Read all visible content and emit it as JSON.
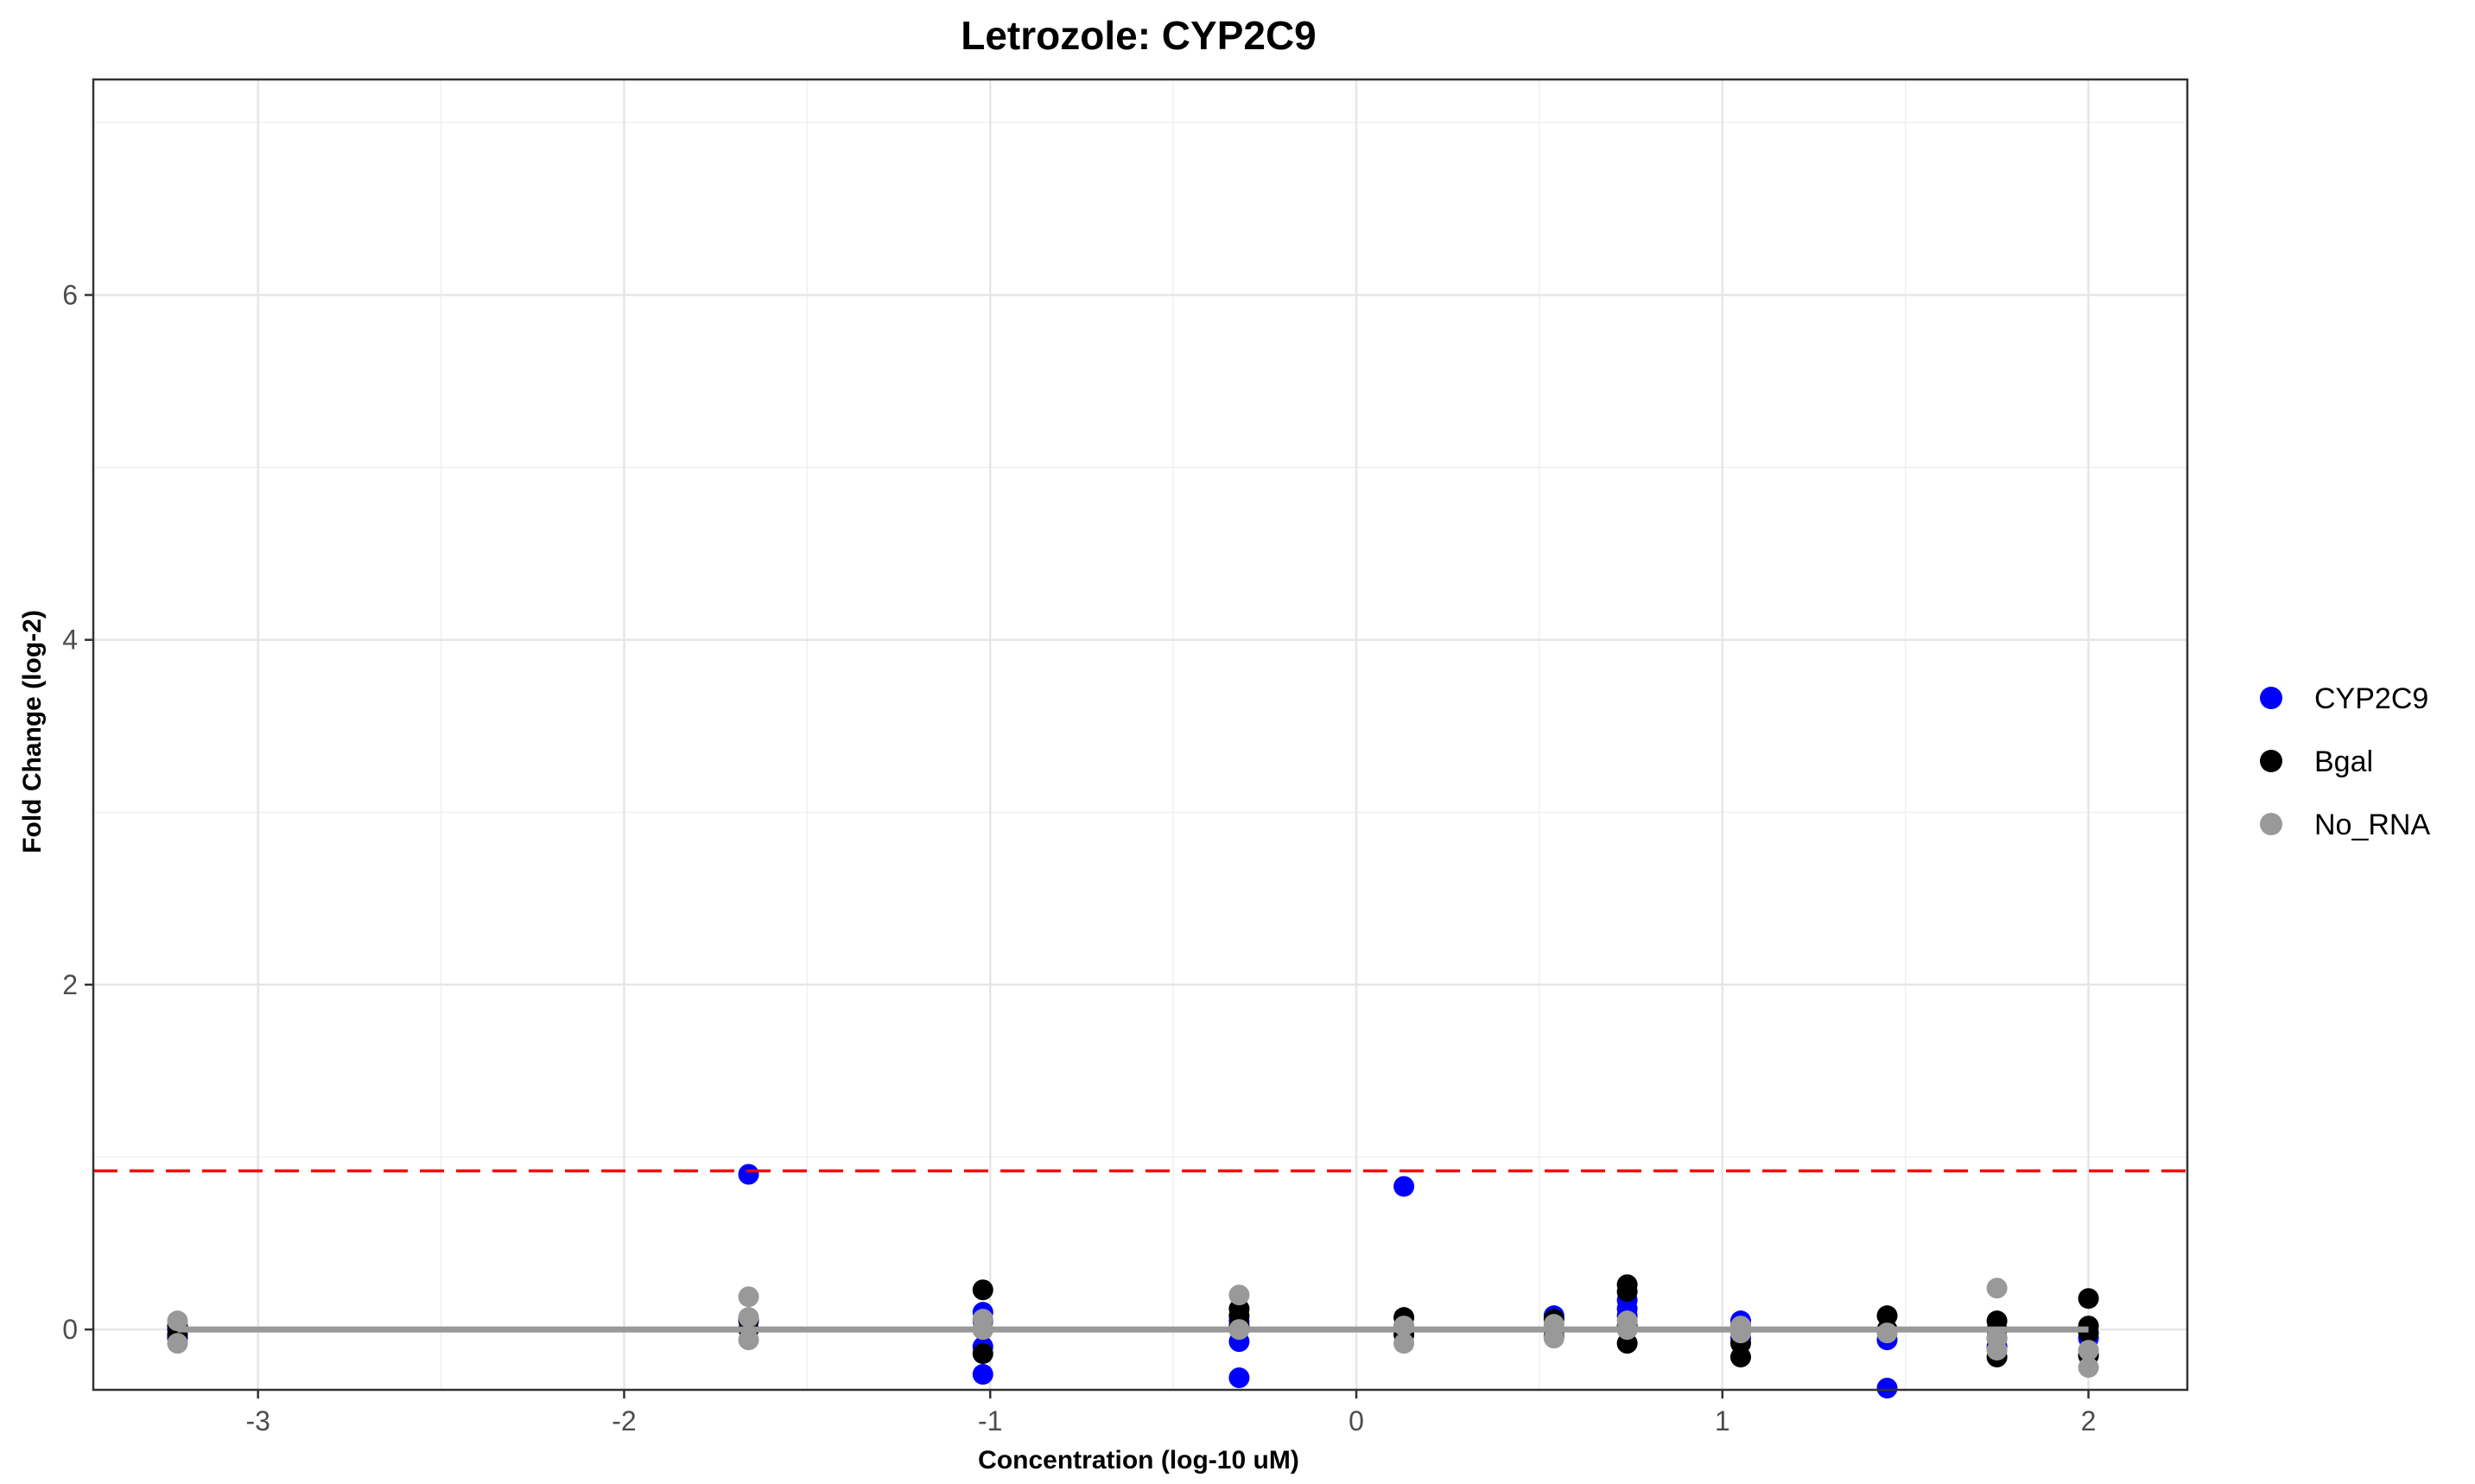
{
  "chart_data": {
    "type": "scatter",
    "title": "Letrozole: CYP2C9",
    "xlabel": "Concentration (log-10 uM)",
    "ylabel": "Fold Change (log-2)",
    "xlim": [
      -3.45,
      2.27
    ],
    "ylim": [
      -0.35,
      7.25
    ],
    "xticks": [
      -3,
      -2,
      -1,
      0,
      1,
      2
    ],
    "yticks": [
      0,
      2,
      4,
      6
    ],
    "x_tick_labels": [
      "-3",
      "-2",
      "-1",
      "0",
      "1",
      "2"
    ],
    "y_tick_labels": [
      "0",
      "2",
      "4",
      "6"
    ],
    "grid": true,
    "legend_position": "right",
    "threshold_line": {
      "y": 0.92,
      "color": "#ff0000",
      "style": "dashed"
    },
    "reference_line": {
      "y": 0,
      "x_range": [
        -3.22,
        2.0
      ],
      "color": "#999999"
    },
    "series": [
      {
        "name": "CYP2C9",
        "color": "#0000ff",
        "points": [
          [
            -3.22,
            0.0
          ],
          [
            -3.22,
            -0.05
          ],
          [
            -1.66,
            0.9
          ],
          [
            -1.66,
            0.05
          ],
          [
            -1.02,
            0.1
          ],
          [
            -1.02,
            -0.1
          ],
          [
            -1.02,
            -0.26
          ],
          [
            -1.02,
            0.05
          ],
          [
            -0.32,
            -0.07
          ],
          [
            -0.32,
            -0.28
          ],
          [
            -0.32,
            0.05
          ],
          [
            0.13,
            0.83
          ],
          [
            0.13,
            0.02
          ],
          [
            0.54,
            0.08
          ],
          [
            0.54,
            0.0
          ],
          [
            0.74,
            0.17
          ],
          [
            0.74,
            0.12
          ],
          [
            0.74,
            0.08
          ],
          [
            1.05,
            0.05
          ],
          [
            1.05,
            -0.05
          ],
          [
            1.45,
            -0.06
          ],
          [
            1.45,
            -0.34
          ],
          [
            1.75,
            -0.05
          ],
          [
            1.75,
            -0.1
          ],
          [
            2.0,
            -0.05
          ],
          [
            2.0,
            -0.15
          ]
        ]
      },
      {
        "name": "Bgal",
        "color": "#000000",
        "points": [
          [
            -3.22,
            0.02
          ],
          [
            -3.22,
            -0.03
          ],
          [
            -1.66,
            0.06
          ],
          [
            -1.66,
            0.0
          ],
          [
            -1.02,
            0.23
          ],
          [
            -1.02,
            0.0
          ],
          [
            -1.02,
            -0.14
          ],
          [
            -0.32,
            0.12
          ],
          [
            -0.32,
            0.08
          ],
          [
            -0.32,
            0.02
          ],
          [
            0.13,
            0.07
          ],
          [
            0.13,
            0.0
          ],
          [
            0.13,
            -0.03
          ],
          [
            0.54,
            0.06
          ],
          [
            0.54,
            0.0
          ],
          [
            0.54,
            -0.04
          ],
          [
            0.74,
            0.26
          ],
          [
            0.74,
            0.22
          ],
          [
            0.74,
            -0.08
          ],
          [
            0.74,
            0.02
          ],
          [
            1.05,
            -0.08
          ],
          [
            1.05,
            -0.16
          ],
          [
            1.05,
            0.02
          ],
          [
            1.45,
            0.08
          ],
          [
            1.45,
            0.0
          ],
          [
            1.75,
            0.05
          ],
          [
            1.75,
            -0.16
          ],
          [
            1.75,
            0.0
          ],
          [
            2.0,
            0.18
          ],
          [
            2.0,
            0.02
          ],
          [
            2.0,
            -0.02
          ],
          [
            2.0,
            -0.15
          ]
        ]
      },
      {
        "name": "No_RNA",
        "color": "#999999",
        "points": [
          [
            -3.22,
            0.05
          ],
          [
            -3.22,
            -0.08
          ],
          [
            -1.66,
            0.19
          ],
          [
            -1.66,
            0.07
          ],
          [
            -1.66,
            -0.06
          ],
          [
            -1.02,
            0.06
          ],
          [
            -1.02,
            0.0
          ],
          [
            -0.32,
            0.2
          ],
          [
            -0.32,
            0.0
          ],
          [
            0.13,
            0.02
          ],
          [
            0.13,
            -0.08
          ],
          [
            0.54,
            0.03
          ],
          [
            0.54,
            -0.05
          ],
          [
            0.74,
            0.05
          ],
          [
            0.74,
            0.0
          ],
          [
            1.05,
            0.02
          ],
          [
            1.05,
            -0.02
          ],
          [
            1.45,
            -0.02
          ],
          [
            1.75,
            0.24
          ],
          [
            1.75,
            -0.05
          ],
          [
            1.75,
            -0.12
          ],
          [
            2.0,
            -0.12
          ],
          [
            2.0,
            -0.22
          ]
        ]
      }
    ]
  }
}
